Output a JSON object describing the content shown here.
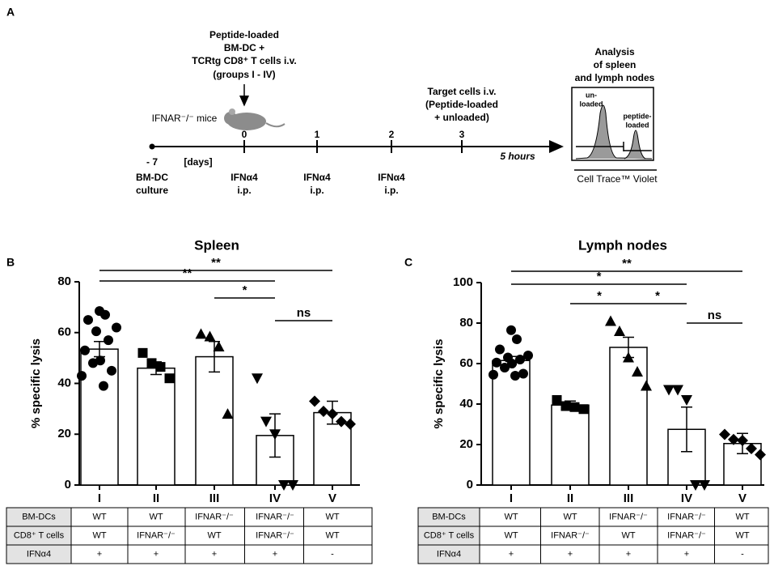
{
  "panels": [
    "A",
    "B",
    "C"
  ],
  "schematic": {
    "days": [
      "- 7",
      "0",
      "1",
      "2",
      "3"
    ],
    "days_unit": "[days]",
    "culture": [
      "BM-DC",
      "culture"
    ],
    "treatments": [
      [
        "IFNα4",
        "i.p."
      ],
      [
        "IFNα4",
        "i.p."
      ],
      [
        "IFNα4",
        "i.p."
      ]
    ],
    "transfer": [
      "Peptide-loaded",
      "BM-DC +",
      "TCRtg CD8⁺ T cells i.v.",
      "(groups I - IV)"
    ],
    "mice": "IFNAR⁻/⁻ mice",
    "targets": [
      "Target cells i.v.",
      "(Peptide-loaded",
      "+ unloaded)"
    ],
    "duration": "5 hours",
    "analysis": [
      "Analysis",
      "of spleen",
      "and lymph nodes"
    ],
    "inset_left": [
      "un-",
      "loaded"
    ],
    "inset_right": [
      "peptide-",
      "loaded"
    ],
    "inset_axis": "Cell Trace™ Violet"
  },
  "chart_data": [
    {
      "type": "bar",
      "title": "Spleen",
      "ylabel": "% specific lysis",
      "color": "#ffffff",
      "categories": [
        "I",
        "II",
        "III",
        "IV",
        "V"
      ],
      "values": [
        53.5,
        46,
        50.5,
        19.5,
        28.5
      ],
      "errors": [
        3,
        2.5,
        6,
        8.5,
        4.5
      ],
      "markers": [
        "circle",
        "square",
        "triangle-up",
        "triangle-down",
        "diamond"
      ],
      "points": [
        [
          68.5,
          67,
          65,
          62,
          60.5,
          57,
          53,
          49,
          48,
          45,
          43,
          39
        ],
        [
          52,
          48,
          46.5,
          42
        ],
        [
          59.5,
          58.5,
          54.5,
          28
        ],
        [
          42,
          25,
          20,
          0,
          0
        ],
        [
          33,
          29,
          28,
          25,
          24
        ]
      ],
      "ylim": [
        0,
        80
      ],
      "yticks": [
        0,
        20,
        40,
        60,
        80
      ],
      "brackets": [
        {
          "label": "**",
          "span": [
            "I",
            "V"
          ]
        },
        {
          "label": "**",
          "span": [
            "I",
            "IV"
          ]
        },
        {
          "label": "*",
          "span": [
            "III",
            "IV"
          ]
        },
        {
          "label": "ns",
          "span": [
            "IV",
            "V"
          ]
        }
      ],
      "table": [
        {
          "label": "BM-DCs",
          "cells": [
            "WT",
            "WT",
            "IFNAR⁻/⁻",
            "IFNAR⁻/⁻",
            "WT"
          ]
        },
        {
          "label": "CD8⁺ T cells",
          "cells": [
            "WT",
            "IFNAR⁻/⁻",
            "WT",
            "IFNAR⁻/⁻",
            "WT"
          ]
        },
        {
          "label": "IFNα4",
          "cells": [
            "+",
            "+",
            "+",
            "+",
            "-"
          ]
        }
      ]
    },
    {
      "type": "bar",
      "title": "Lymph nodes",
      "ylabel": "% specific lysis",
      "color": "#ffffff",
      "categories": [
        "I",
        "II",
        "III",
        "IV",
        "V"
      ],
      "values": [
        61.5,
        39.5,
        68,
        27.5,
        20.5
      ],
      "errors": [
        2,
        2,
        5,
        11,
        5
      ],
      "markers": [
        "circle",
        "square",
        "triangle-up",
        "triangle-down",
        "diamond"
      ],
      "points": [
        [
          76.5,
          72,
          67,
          64,
          63,
          62,
          60.5,
          60,
          58,
          55,
          54.5,
          54
        ],
        [
          42,
          39,
          38.5,
          37.5
        ],
        [
          81,
          76,
          63,
          56,
          49
        ],
        [
          47,
          47,
          42,
          0,
          0
        ],
        [
          25,
          22.5,
          22,
          18,
          15
        ]
      ],
      "ylim": [
        0,
        100
      ],
      "yticks": [
        0,
        20,
        40,
        60,
        80,
        100
      ],
      "brackets": [
        {
          "label": "**",
          "span": [
            "I",
            "V"
          ]
        },
        {
          "label": "*",
          "span": [
            "I",
            "IV"
          ]
        },
        {
          "label": "*",
          "span": [
            "II",
            "III"
          ]
        },
        {
          "label": "*",
          "span": [
            "III",
            "IV"
          ]
        },
        {
          "label": "ns",
          "span": [
            "IV",
            "V"
          ]
        }
      ],
      "table": [
        {
          "label": "BM-DCs",
          "cells": [
            "WT",
            "WT",
            "IFNAR⁻/⁻",
            "IFNAR⁻/⁻",
            "WT"
          ]
        },
        {
          "label": "CD8⁺ T cells",
          "cells": [
            "WT",
            "IFNAR⁻/⁻",
            "WT",
            "IFNAR⁻/⁻",
            "WT"
          ]
        },
        {
          "label": "IFNα4",
          "cells": [
            "+",
            "+",
            "+",
            "+",
            "-"
          ]
        }
      ]
    }
  ]
}
